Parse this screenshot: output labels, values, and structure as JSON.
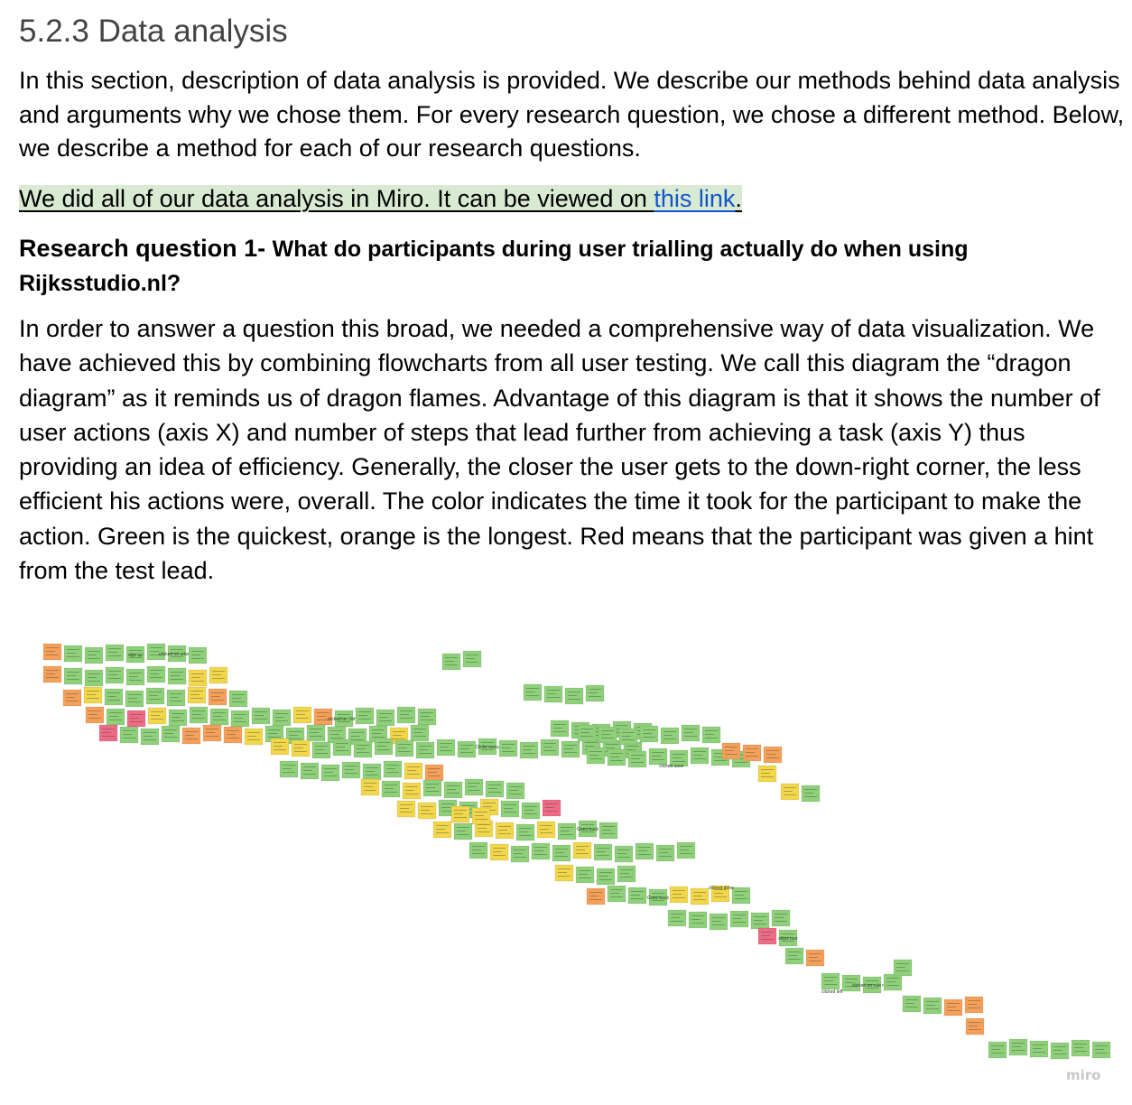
{
  "section": {
    "heading": "5.2.3 Data analysis",
    "intro": "In this section, description of data analysis is provided. We describe our methods behind data analysis and arguments why we chose them. For every research question, we chose a different method. Below, we describe a method for each of our research questions.",
    "miro_text": "We did all of our data analysis in Miro. It can be viewed on ",
    "miro_link_text": "this link",
    "miro_suffix": "."
  },
  "research_question": {
    "lead": "Research question 1- ",
    "text": "What do participants during user trialling actually do when using Rijksstudio.nl?"
  },
  "body_paragraph": "In order to answer a question this broad, we needed a comprehensive way of data visualization. We have achieved this by combining flowcharts from all user testing. We call this diagram the “dragon diagram” as it reminds us of dragon flames. Advantage of this diagram is that it shows the number of user actions (axis X) and number of steps that lead further from achieving a task (axis Y) thus providing an idea of efficiency. Generally, the closer the user gets to the down-right corner, the less efficient his actions were, overall. The color indicates the time it took for the participant to make the action. Green is the quickest, orange is the longest. Red means that the participant was given a hint from the test lead.",
  "diagram": {
    "watermark": "miro",
    "colors": {
      "quick": "#8fd07a",
      "medium": "#f2d64b",
      "long": "#f5a05a",
      "hint": "#ee6b86"
    },
    "sticky_labels": [
      "sign up",
      "clicked on artwork",
      "clicked on Vohra",
      "Clicks menu",
      "Goes back",
      "Goes back",
      "skips tour",
      "clicked on rule maid",
      "clicked save",
      "clicked done",
      "clicked left"
    ]
  }
}
